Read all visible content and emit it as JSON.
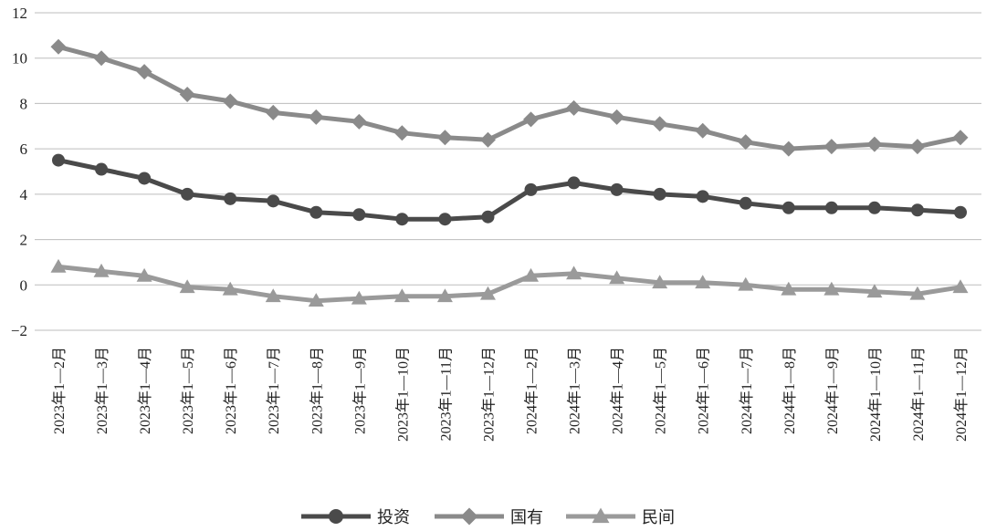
{
  "chart_data": {
    "type": "line",
    "title": "",
    "xlabel": "",
    "ylabel": "",
    "ylim": [
      -2,
      12
    ],
    "yticks": [
      "12",
      "10",
      "8",
      "6",
      "4",
      "2",
      "0",
      "−2"
    ],
    "grid": true,
    "legend_position": "bottom",
    "categories": [
      "2023年1—2月",
      "2023年1—3月",
      "2023年1—4月",
      "2023年1—5月",
      "2023年1—6月",
      "2023年1—7月",
      "2023年1—8月",
      "2023年1—9月",
      "2023年1—10月",
      "2023年1—11月",
      "2023年1—12月",
      "2024年1—2月",
      "2024年1—3月",
      "2024年1—4月",
      "2024年1—5月",
      "2024年1—6月",
      "2024年1—7月",
      "2024年1—8月",
      "2024年1—9月",
      "2024年1—10月",
      "2024年1—11月",
      "2024年1—12月"
    ],
    "series": [
      {
        "name": "投资",
        "color": "#4a4a4a",
        "marker": "circle",
        "values": [
          5.5,
          5.1,
          4.7,
          4.0,
          3.8,
          3.7,
          3.2,
          3.1,
          2.9,
          2.9,
          3.0,
          4.2,
          4.5,
          4.2,
          4.0,
          3.9,
          3.6,
          3.4,
          3.4,
          3.4,
          3.3,
          3.2
        ]
      },
      {
        "name": "国有",
        "color": "#8a8a8a",
        "marker": "diamond",
        "values": [
          10.5,
          10.0,
          9.4,
          8.4,
          8.1,
          7.6,
          7.4,
          7.2,
          6.7,
          6.5,
          6.4,
          7.3,
          7.8,
          7.4,
          7.1,
          6.8,
          6.3,
          6.0,
          6.1,
          6.2,
          6.1,
          6.5
        ]
      },
      {
        "name": "民间",
        "color": "#9a9a9a",
        "marker": "triangle",
        "values": [
          0.8,
          0.6,
          0.4,
          -0.1,
          -0.2,
          -0.5,
          -0.7,
          -0.6,
          -0.5,
          -0.5,
          -0.4,
          0.4,
          0.5,
          0.3,
          0.1,
          0.1,
          0.0,
          -0.2,
          -0.2,
          -0.3,
          -0.4,
          -0.1
        ]
      }
    ]
  }
}
